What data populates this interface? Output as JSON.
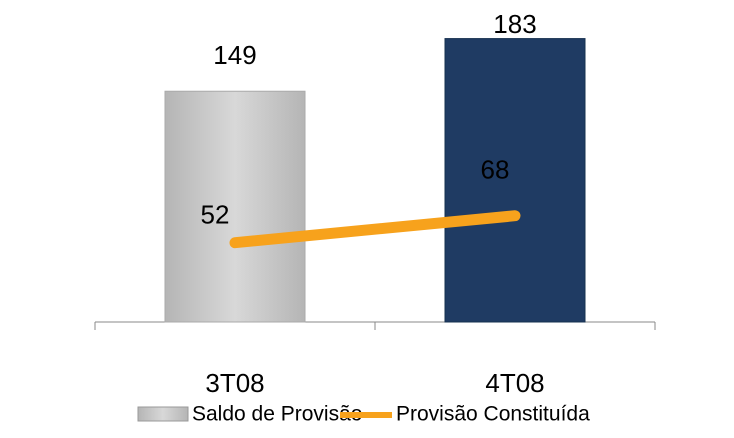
{
  "chart_data": {
    "type": "bar",
    "categories": [
      "3T08",
      "4T08"
    ],
    "series": [
      {
        "name": "Saldo de Provisão",
        "type": "bar",
        "colors": [
          "#cacaca",
          "#1f3b63"
        ],
        "color": "#cacaca",
        "values": [
          149,
          183
        ]
      },
      {
        "name": "Provisão Constituída",
        "type": "line",
        "axis": "y2",
        "color": "#f7a21c",
        "values": [
          52,
          68
        ]
      }
    ],
    "ylim": [
      0,
      195
    ],
    "y2lim": [
      5,
      184
    ],
    "grid": false,
    "legend": "bottom"
  }
}
